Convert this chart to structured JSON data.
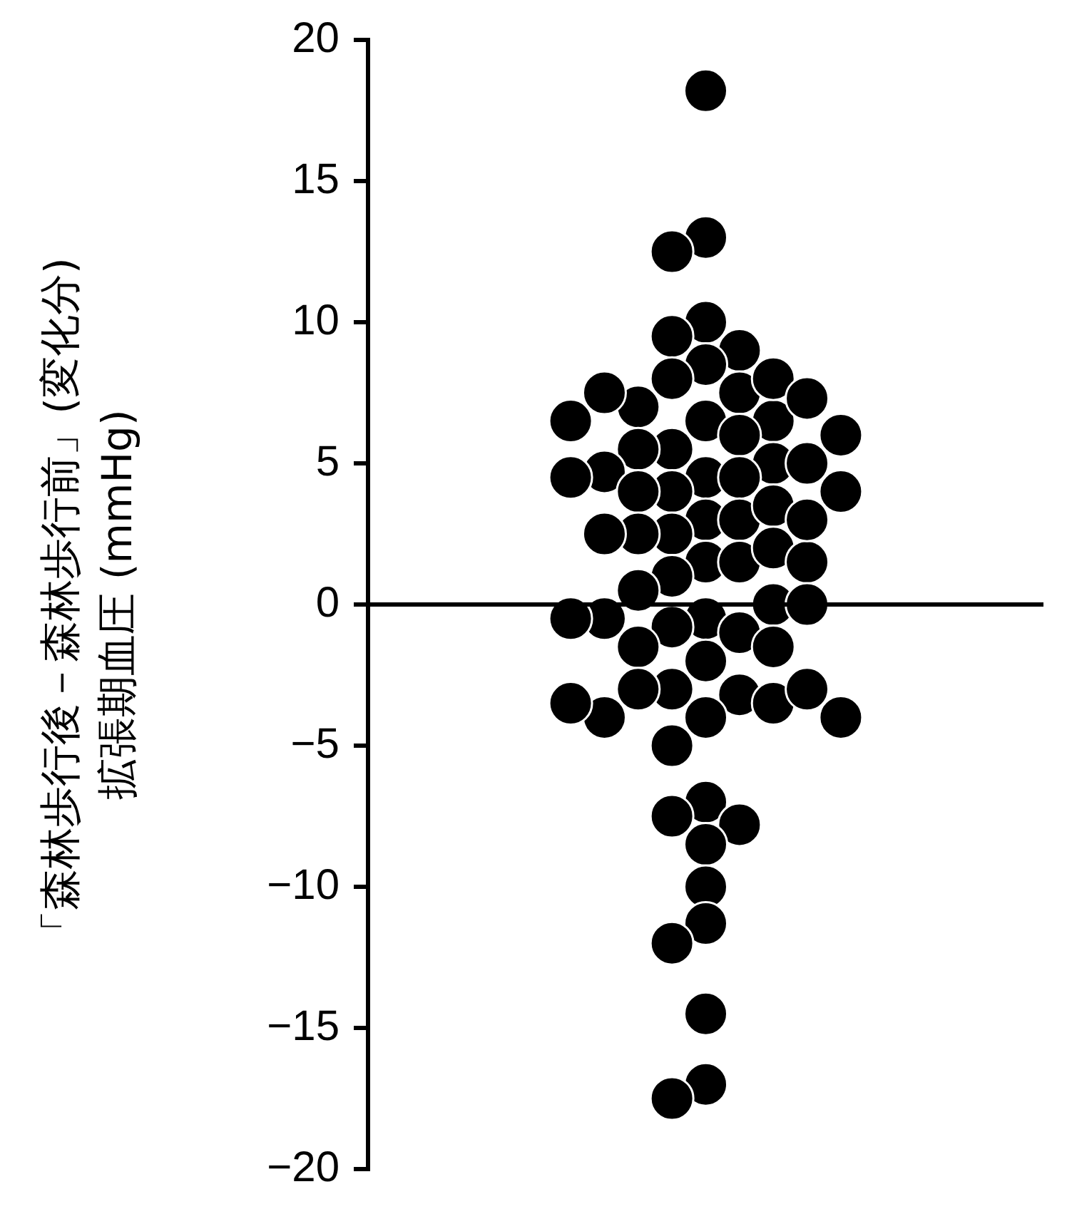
{
  "chart_data": {
    "type": "scatter",
    "ylabel": "「森林歩行後－森林歩行前」(変化分)\n拡張期血圧 (mmHg)",
    "categories": [
      null
    ],
    "marker": "circle",
    "legend": false,
    "series": [
      {
        "color": "#000000",
        "x": [
          null,
          null,
          null,
          null,
          null,
          null,
          null,
          null,
          null,
          null,
          null,
          null,
          null,
          null,
          null,
          null,
          null,
          null,
          null,
          null,
          null,
          null,
          null,
          null,
          null,
          null,
          null,
          null,
          null,
          null,
          null,
          null,
          null,
          null,
          null,
          null,
          null,
          null,
          null,
          null,
          null,
          null,
          null,
          null,
          null,
          null,
          null,
          null,
          null,
          null,
          null,
          null,
          null,
          null,
          null,
          null,
          null,
          null,
          null,
          null,
          null,
          null,
          null,
          null,
          null,
          null,
          null,
          null,
          null,
          null,
          null,
          null
        ],
        "values": [
          18.2,
          13,
          12.5,
          10,
          9.5,
          9,
          8.5,
          6.5,
          5.5,
          4.5,
          4,
          3,
          2.5,
          1.5,
          -0.5,
          -0.8,
          -1,
          -2,
          -3,
          -3.2,
          -4,
          -5,
          -7,
          -7.5,
          -7.8,
          -8.5,
          -10,
          -11.3,
          -12,
          -14.5,
          -17,
          -17.5,
          8,
          7.5,
          7,
          6.5,
          6,
          5.5,
          5,
          4.7,
          4.5,
          4,
          3,
          2.5,
          1.5,
          1,
          0.5,
          0,
          -0.5,
          -1.5,
          -3,
          -3.5,
          -4,
          8,
          7.5,
          7.3,
          6.5,
          6,
          5,
          4.5,
          4,
          3.5,
          2.5,
          2,
          1.5,
          0,
          -0.5,
          -1.5,
          -3,
          -3.5,
          -4,
          3
        ]
      }
    ],
    "ylim": [
      -20,
      20
    ],
    "yticks": [
      20,
      15,
      10,
      5,
      0,
      {
        "value": -5,
        "label": "−5"
      },
      {
        "value": -10,
        "label": "−10"
      },
      {
        "value": -15,
        "label": "−15"
      },
      {
        "value": -20,
        "label": "−20"
      }
    ]
  }
}
